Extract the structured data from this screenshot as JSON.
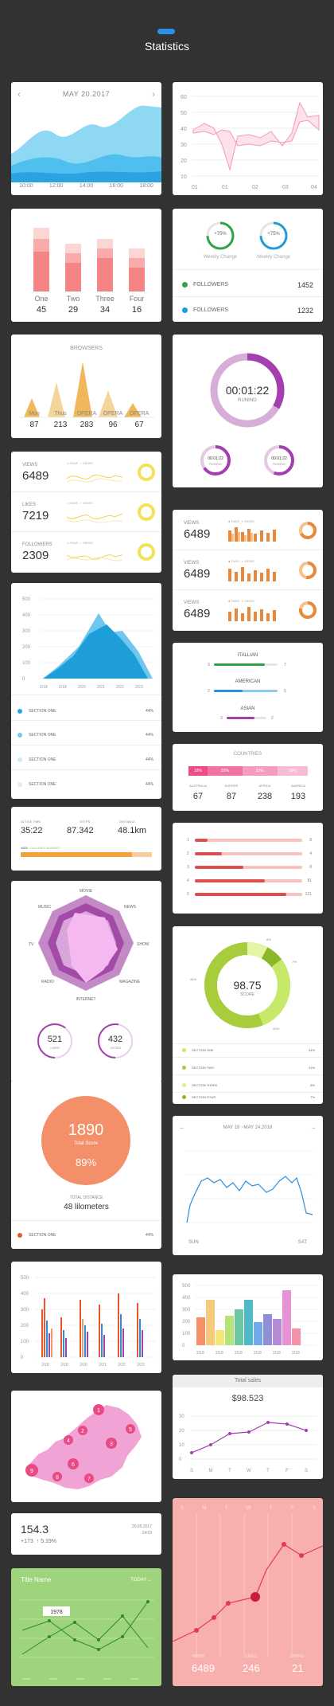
{
  "header": {
    "title": "Statistics"
  },
  "wave": {
    "date": "MAY  20.2017",
    "times": [
      "10:00",
      "12:00",
      "14:00",
      "16:00",
      "18:00"
    ]
  },
  "line1": {
    "yticks": [
      "60",
      "50",
      "40",
      "30",
      "20",
      "10"
    ],
    "xticks": [
      "01",
      "01",
      "02",
      "03",
      "04"
    ]
  },
  "bars1": {
    "labels": [
      "One",
      "Two",
      "Three",
      "Four"
    ],
    "values": [
      "45",
      "29",
      "34",
      "16"
    ]
  },
  "rings1": {
    "items": [
      {
        "pct": "+75%",
        "label": "Weekly Change"
      },
      {
        "pct": "+75%",
        "label": "Weekly Change"
      }
    ],
    "rows": [
      {
        "label": "FOLLOWERS",
        "value": "1452"
      },
      {
        "label": "FOLLOWERS",
        "value": "1232"
      }
    ]
  },
  "browsers": {
    "title": "BROWSERS",
    "labels": [
      "Mon",
      "Thus",
      "OPERA",
      "OPERA",
      "OPERA"
    ],
    "values": [
      "87",
      "213",
      "283",
      "96",
      "67"
    ]
  },
  "timer": {
    "time": "00:01:22",
    "status": "RUNING",
    "small": [
      {
        "time": "00:01:22",
        "status": "RUNING"
      },
      {
        "time": "00:01:22",
        "status": "RUNING"
      }
    ]
  },
  "sparks": {
    "rows": [
      {
        "label": "VIEWS",
        "value": "6489",
        "l1": "FANS",
        "l2": "VIEWS"
      },
      {
        "label": "LIKES",
        "value": "7219",
        "l1": "FANS",
        "l2": "VIEWS"
      },
      {
        "label": "FOLLOWERS",
        "value": "2309",
        "l1": "FANS",
        "l2": "VIEWS"
      }
    ]
  },
  "views": {
    "rows": [
      {
        "label": "VIEWS",
        "value": "6489",
        "l1": "FANS",
        "l2": "VIEWS"
      },
      {
        "label": "VIEWS",
        "value": "6489",
        "l1": "FANS",
        "l2": "VIEWS"
      },
      {
        "label": "VIEWS",
        "value": "6489",
        "l1": "FANS",
        "l2": "VIEWS"
      }
    ]
  },
  "area": {
    "yticks": [
      "500",
      "400",
      "300",
      "200",
      "100",
      "0"
    ],
    "xticks": [
      "2/18",
      "2/18",
      "2/20",
      "2/21",
      "2/22",
      "2/23"
    ],
    "rows": [
      {
        "label": "SECTION  ONE",
        "pct": "44%",
        "color": "#2aa3e0"
      },
      {
        "label": "SECTION  ONE",
        "pct": "44%",
        "color": "#6fc7f0"
      },
      {
        "label": "SECTION  ONE",
        "pct": "44%",
        "color": "#cfe9f6"
      },
      {
        "label": "SECTION  ONE",
        "pct": "44%",
        "color": "#eaeaea"
      }
    ]
  },
  "cuisine": {
    "items": [
      {
        "label": "ITALLIAN",
        "a": "3",
        "b": "7",
        "color": "#2fa24a"
      },
      {
        "label": "AMERICAN",
        "a": "2",
        "b": "5",
        "color": "#2a8fdf"
      },
      {
        "label": "ASIAN",
        "a": "3",
        "b": "2",
        "color": "#a43fb0"
      }
    ]
  },
  "countries": {
    "title": "COUNTRIES",
    "segments": [
      "18%",
      "33%",
      "33%",
      "29%"
    ],
    "labels": [
      "AUSTRALIA",
      "EUROPE",
      "AFRICA",
      "AMERICA"
    ],
    "values": [
      "67",
      "87",
      "238",
      "193"
    ]
  },
  "activity": {
    "items": [
      {
        "label": "ACTIVE  TIME",
        "value": "35:22"
      },
      {
        "label": "STEPS",
        "value": "87.342"
      },
      {
        "label": "DISTANCE",
        "value": "48.1km"
      }
    ],
    "bar_num": "4800",
    "bar_label": "CALORIES BURNED"
  },
  "progress": {
    "rows": [
      {
        "n": "1",
        "v": "8"
      },
      {
        "n": "2",
        "v": "4"
      },
      {
        "n": "3",
        "v": "8"
      },
      {
        "n": "4",
        "v": "81"
      },
      {
        "n": "5",
        "v": "121"
      }
    ]
  },
  "radar": {
    "labels": [
      "MOVIE",
      "NEWS",
      "SHOW",
      "MAGAZINE",
      "INTERNET",
      "RADIO",
      "TV",
      "MUSIC"
    ],
    "circles": [
      {
        "value": "521",
        "label": "LIKES"
      },
      {
        "value": "432",
        "label": "VOTES"
      }
    ]
  },
  "donut": {
    "value": "98.75",
    "label": "SCORE",
    "pcts": [
      "8%",
      "7%",
      "44%",
      "41%"
    ],
    "rows": [
      {
        "label": "SECTION  ONE",
        "pct": "44%",
        "color": "#c7e96a"
      },
      {
        "label": "SECTION  TWO",
        "pct": "41%",
        "color": "#a7cc3c"
      },
      {
        "label": "SECTION  THREE",
        "pct": "8%",
        "color": "#d9ef8e"
      },
      {
        "label": "SECTION  FOUR",
        "pct": "7%",
        "color": "#8cb72c"
      }
    ]
  },
  "score": {
    "value": "1890",
    "label": "Total  Score",
    "pct": "89%",
    "dist_label": "TOTAL DISTANCE",
    "dist": "48  lilometers",
    "row_label": "SECTION  ONE",
    "row_pct": "44%"
  },
  "dateline": {
    "range": "MAY  18 ~MAY  24,2018",
    "left": "SUN",
    "right": "SAT"
  },
  "groupbar": {
    "yticks": [
      "500",
      "400",
      "300",
      "200",
      "100",
      "0"
    ],
    "xticks": [
      "2/18",
      "2/18",
      "2/20",
      "2/21",
      "2/22",
      "2/23"
    ]
  },
  "colorbar": {
    "yticks": [
      "500",
      "400",
      "300",
      "200",
      "100",
      "0"
    ],
    "xticks": [
      "2/18",
      "2/18",
      "2/18",
      "2/18",
      "2/18",
      "2/18"
    ]
  },
  "map": {
    "markers": [
      "1",
      "2",
      "3",
      "4",
      "5",
      "6",
      "7",
      "8",
      "9"
    ]
  },
  "sales": {
    "title": "Total  sales",
    "value": "$98.523",
    "yticks": [
      "30",
      "20",
      "10",
      "0"
    ],
    "days": [
      "S",
      "M",
      "T",
      "W",
      "T",
      "F",
      "S"
    ]
  },
  "stat": {
    "value": "154.3",
    "delta1": "+173",
    "delta2": "5.19%",
    "date": "20.05.2017",
    "time": "14:03"
  },
  "green": {
    "title": "Title  Name",
    "today": "TODAY",
    "point": "1978",
    "xlabels": [
      "xxxxx",
      "xxxxx",
      "xxxxx",
      "xxxxx",
      "xxxxx"
    ]
  },
  "pink": {
    "days": [
      "S",
      "M",
      "T",
      "W",
      "T",
      "F",
      "S"
    ],
    "stats": [
      {
        "label": "VIEWS",
        "value": "6489"
      },
      {
        "label": "LIKES",
        "value": "246"
      },
      {
        "label": "USERS",
        "value": "21"
      }
    ]
  }
}
